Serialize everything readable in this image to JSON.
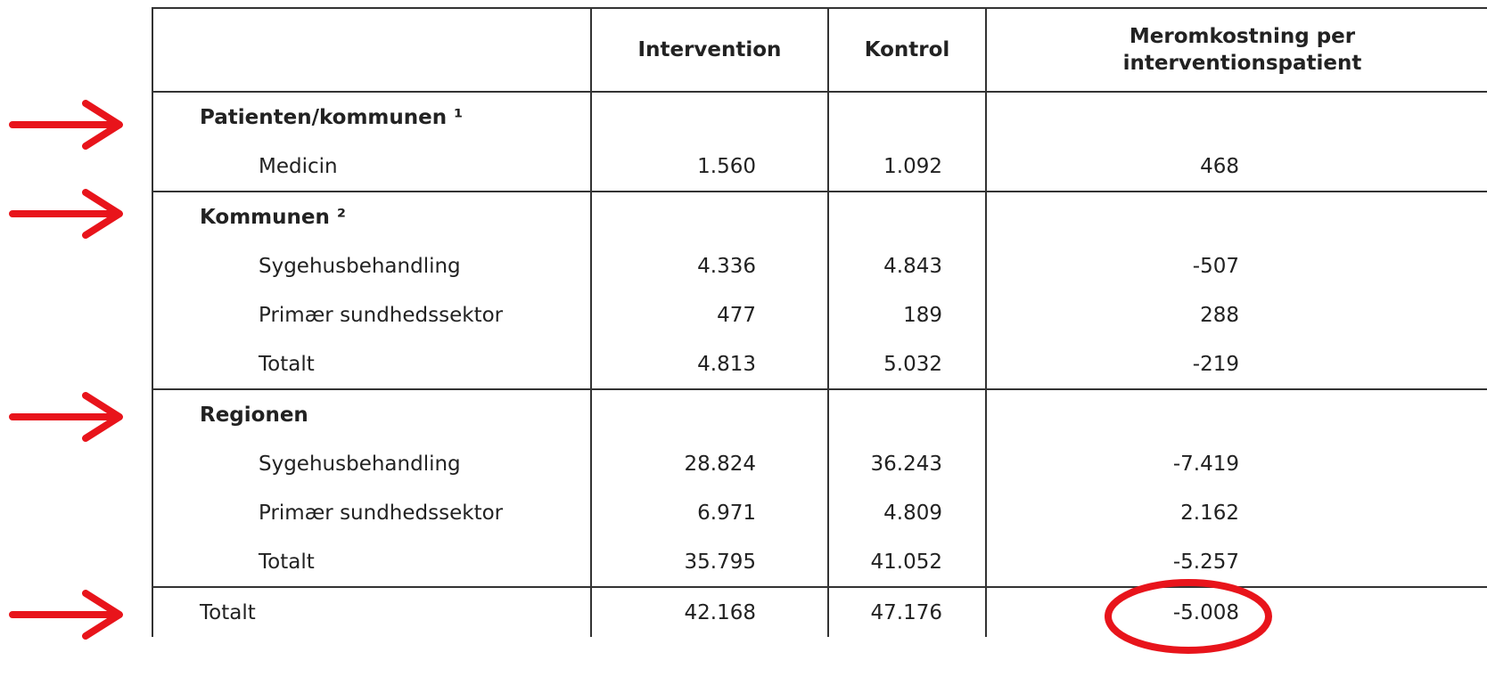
{
  "table": {
    "columns": [
      "Intervention",
      "Kontrol",
      "Meromkostning per interventionspatient"
    ],
    "sections": [
      {
        "title": "Patienten/kommunen ¹",
        "rows": [
          [
            "Medicin",
            "1.560",
            "1.092",
            "468"
          ]
        ]
      },
      {
        "title": "Kommunen ²",
        "rows": [
          [
            "Sygehusbehandling",
            "4.336",
            "4.843",
            "-507"
          ],
          [
            "Primær sundhedssektor",
            "477",
            "189",
            "288"
          ],
          [
            "Totalt",
            "4.813",
            "5.032",
            "-219"
          ]
        ]
      },
      {
        "title": "Regionen",
        "rows": [
          [
            "Sygehusbehandling",
            "28.824",
            "36.243",
            "-7.419"
          ],
          [
            "Primær sundhedssektor",
            "6.971",
            "4.809",
            "2.162"
          ],
          [
            "Totalt",
            "35.795",
            "41.052",
            "-5.257"
          ]
        ]
      }
    ],
    "total": [
      "Totalt",
      "42.168",
      "47.176",
      "-5.008"
    ]
  }
}
